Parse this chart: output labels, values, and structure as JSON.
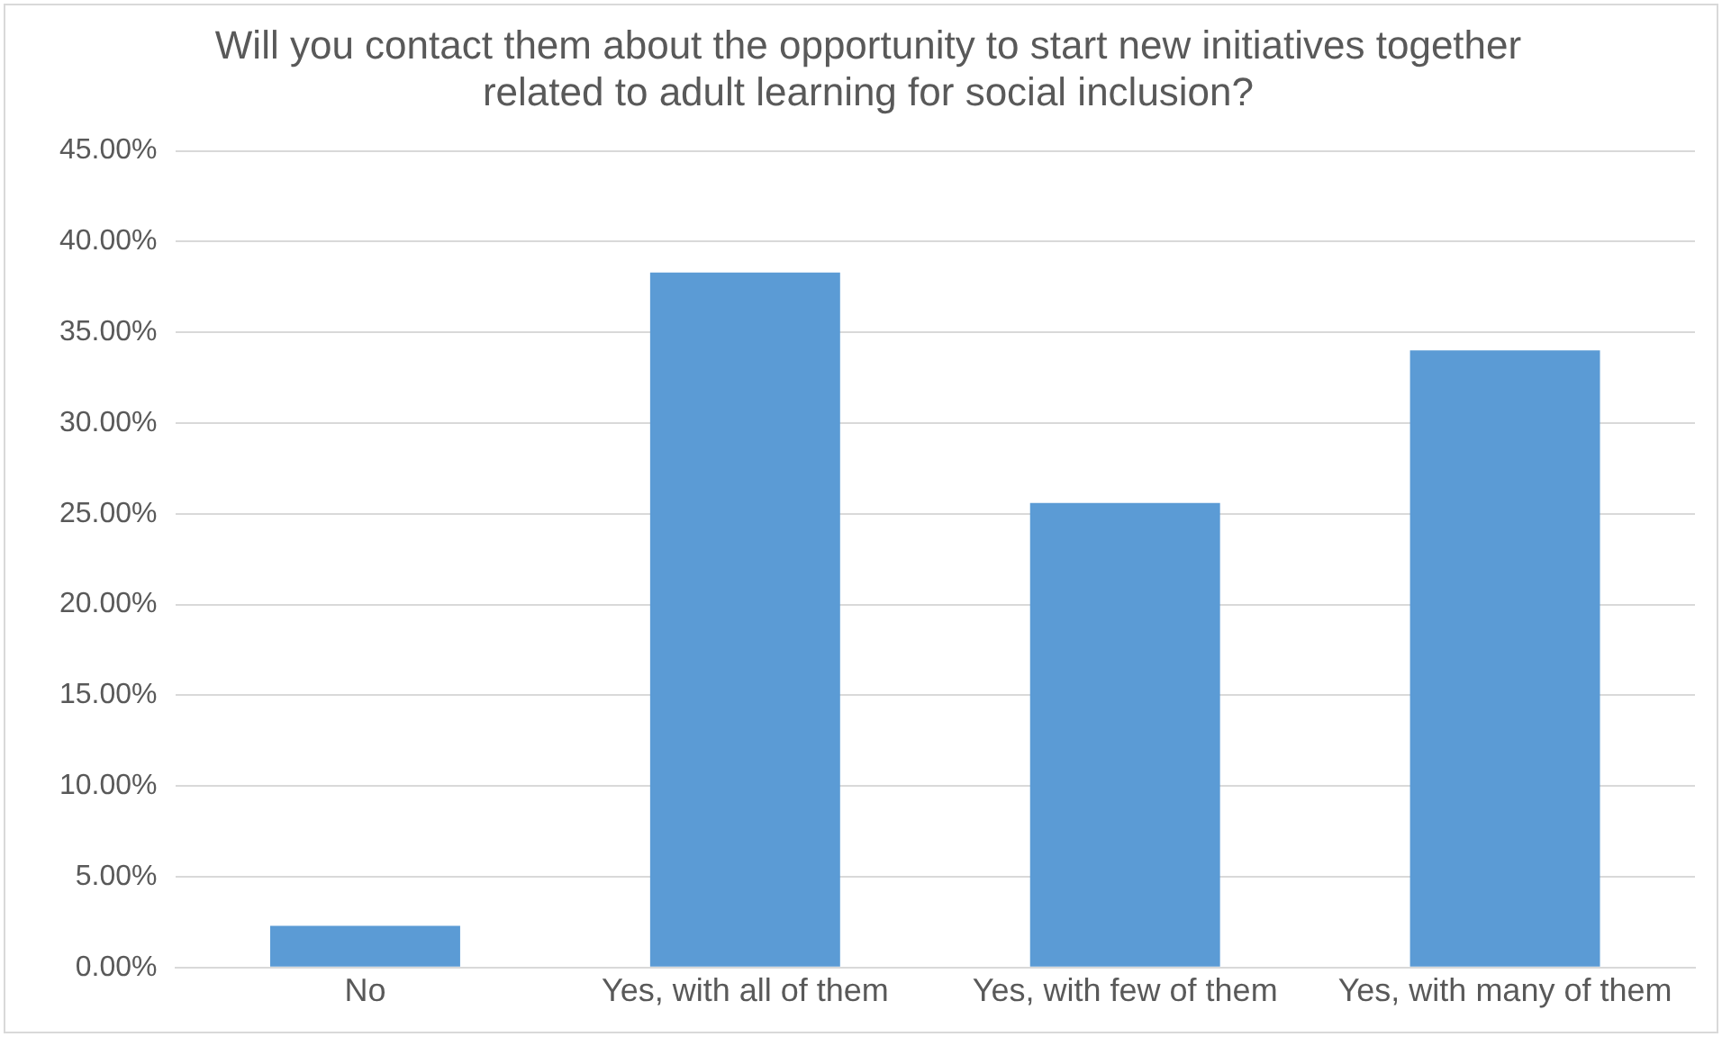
{
  "chart_data": {
    "type": "bar",
    "title": "Will you contact them about the opportunity to start new initiatives together related to adult learning for social inclusion?",
    "categories": [
      "No",
      "Yes, with all of them",
      "Yes, with few of them",
      "Yes, with many of them"
    ],
    "values": [
      2.3,
      38.3,
      25.6,
      34.0
    ],
    "color": "#5b9bd5",
    "ylim": [
      0,
      45
    ],
    "yticks": [
      {
        "value": 0,
        "label": "0.00%"
      },
      {
        "value": 5,
        "label": "5.00%"
      },
      {
        "value": 10,
        "label": "10.00%"
      },
      {
        "value": 15,
        "label": "15.00%"
      },
      {
        "value": 20,
        "label": "20.00%"
      },
      {
        "value": 25,
        "label": "25.00%"
      },
      {
        "value": 30,
        "label": "30.00%"
      },
      {
        "value": 35,
        "label": "35.00%"
      },
      {
        "value": 40,
        "label": "40.00%"
      },
      {
        "value": 45,
        "label": "45.00%"
      }
    ],
    "grid": "y",
    "legend": false
  }
}
